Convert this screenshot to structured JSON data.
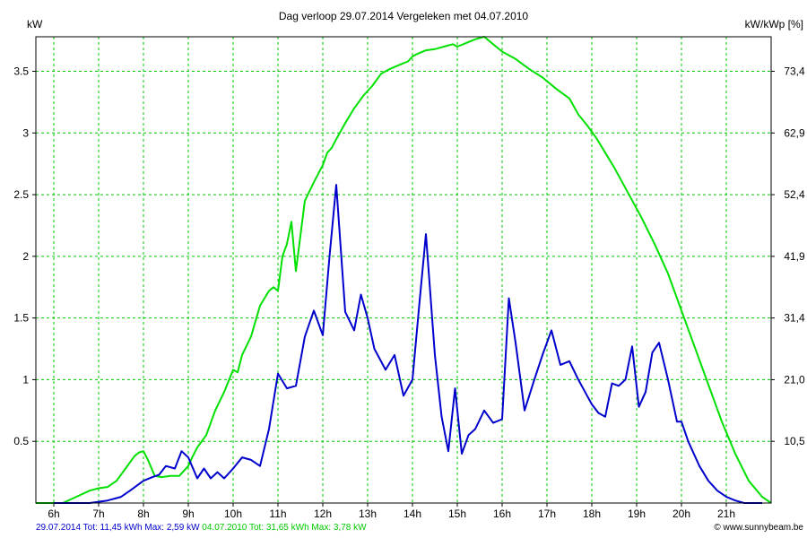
{
  "chart_data": {
    "type": "line",
    "title": "Dag  verloop 29.07.2014    Vergeleken met 04.07.2010",
    "ylabel_left": "kW",
    "ylabel_right": "kW/kWp [%]",
    "x_tick_labels": [
      "6h",
      "7h",
      "8h",
      "9h",
      "10h",
      "11h",
      "12h",
      "13h",
      "14h",
      "15h",
      "16h",
      "17h",
      "18h",
      "19h",
      "20h",
      "21h"
    ],
    "x_ticks": [
      6,
      7,
      8,
      9,
      10,
      11,
      12,
      13,
      14,
      15,
      16,
      17,
      18,
      19,
      20,
      21
    ],
    "xlim": [
      5.6,
      22
    ],
    "y_ticks": [
      0.5,
      1,
      1.5,
      2,
      2.5,
      3,
      3.5
    ],
    "y_tick_labels": [
      "0.5",
      "1",
      "1.5",
      "2",
      "2.5",
      "3",
      "3.5"
    ],
    "ylim": [
      0,
      3.78
    ],
    "y2_tick_labels": [
      "10,5",
      "21,0",
      "31,4",
      "41,9",
      "52,4",
      "62,9",
      "73,4"
    ],
    "grid": true,
    "series": [
      {
        "name": "04.07.2010",
        "color": "#00e000",
        "x": [
          5.6,
          6.2,
          6.5,
          6.8,
          7.0,
          7.2,
          7.4,
          7.6,
          7.8,
          7.9,
          8.0,
          8.1,
          8.25,
          8.4,
          8.6,
          8.8,
          9.0,
          9.1,
          9.2,
          9.4,
          9.6,
          9.8,
          10.0,
          10.1,
          10.2,
          10.4,
          10.6,
          10.8,
          10.9,
          11.0,
          11.1,
          11.2,
          11.3,
          11.4,
          11.6,
          11.8,
          12.0,
          12.1,
          12.2,
          12.3,
          12.5,
          12.7,
          12.9,
          13.1,
          13.3,
          13.5,
          13.7,
          13.9,
          14.0,
          14.1,
          14.3,
          14.5,
          14.7,
          14.9,
          15.0,
          15.2,
          15.4,
          15.6,
          15.8,
          16.0,
          16.3,
          16.6,
          16.9,
          17.2,
          17.5,
          17.7,
          17.9,
          18.1,
          18.3,
          18.5,
          18.8,
          19.1,
          19.4,
          19.7,
          20.0,
          20.3,
          20.6,
          20.9,
          21.2,
          21.5,
          21.8,
          22.0
        ],
        "values": [
          0.0,
          0.0,
          0.05,
          0.1,
          0.12,
          0.13,
          0.18,
          0.28,
          0.38,
          0.41,
          0.42,
          0.35,
          0.22,
          0.21,
          0.22,
          0.22,
          0.3,
          0.38,
          0.45,
          0.55,
          0.75,
          0.9,
          1.08,
          1.06,
          1.2,
          1.35,
          1.6,
          1.72,
          1.75,
          1.72,
          2.0,
          2.1,
          2.28,
          1.88,
          2.45,
          2.6,
          2.74,
          2.84,
          2.88,
          2.95,
          3.08,
          3.2,
          3.3,
          3.38,
          3.48,
          3.52,
          3.55,
          3.58,
          3.62,
          3.64,
          3.67,
          3.68,
          3.7,
          3.72,
          3.7,
          3.73,
          3.76,
          3.78,
          3.72,
          3.66,
          3.6,
          3.52,
          3.45,
          3.36,
          3.28,
          3.15,
          3.06,
          2.96,
          2.84,
          2.72,
          2.52,
          2.32,
          2.1,
          1.86,
          1.56,
          1.26,
          0.96,
          0.66,
          0.4,
          0.18,
          0.05,
          0.0
        ]
      },
      {
        "name": "29.07.2014",
        "color": "#0000cc",
        "x": [
          6.0,
          6.8,
          7.2,
          7.5,
          7.7,
          8.0,
          8.2,
          8.35,
          8.5,
          8.7,
          8.85,
          9.0,
          9.2,
          9.35,
          9.5,
          9.65,
          9.8,
          10.0,
          10.2,
          10.4,
          10.6,
          10.8,
          11.0,
          11.2,
          11.4,
          11.6,
          11.8,
          12.0,
          12.15,
          12.3,
          12.5,
          12.7,
          12.85,
          13.0,
          13.15,
          13.4,
          13.6,
          13.8,
          14.0,
          14.15,
          14.3,
          14.5,
          14.65,
          14.8,
          14.95,
          15.1,
          15.25,
          15.4,
          15.6,
          15.8,
          16.0,
          16.15,
          16.3,
          16.5,
          16.7,
          16.9,
          17.1,
          17.3,
          17.5,
          17.7,
          17.85,
          18.0,
          18.15,
          18.3,
          18.45,
          18.6,
          18.75,
          18.9,
          19.05,
          19.2,
          19.35,
          19.5,
          19.7,
          19.9,
          20.0,
          20.15,
          20.4,
          20.6,
          20.8,
          21.0,
          21.2,
          21.4,
          21.6,
          21.8
        ],
        "values": [
          0.0,
          0.0,
          0.02,
          0.05,
          0.1,
          0.18,
          0.21,
          0.23,
          0.3,
          0.28,
          0.42,
          0.37,
          0.2,
          0.28,
          0.2,
          0.25,
          0.2,
          0.28,
          0.37,
          0.35,
          0.3,
          0.6,
          1.05,
          0.93,
          0.95,
          1.35,
          1.56,
          1.36,
          2.0,
          2.58,
          1.55,
          1.4,
          1.69,
          1.5,
          1.25,
          1.08,
          1.2,
          0.87,
          1.0,
          1.6,
          2.18,
          1.2,
          0.7,
          0.42,
          0.93,
          0.4,
          0.55,
          0.6,
          0.75,
          0.65,
          0.68,
          1.66,
          1.3,
          0.75,
          0.98,
          1.2,
          1.4,
          1.12,
          1.15,
          1.0,
          0.9,
          0.8,
          0.73,
          0.7,
          0.97,
          0.95,
          1.0,
          1.27,
          0.78,
          0.9,
          1.22,
          1.3,
          1.0,
          0.66,
          0.66,
          0.5,
          0.3,
          0.18,
          0.1,
          0.05,
          0.02,
          0.0,
          0.0,
          0.0
        ]
      }
    ]
  },
  "footer": {
    "left_blue": "29.07.2014 Tot: 11,45 kWh Max: 2,59 kW",
    "left_green": "04.07.2010 Tot: 31,65 kWh Max: 3,78 kW",
    "right": "© www.sunnybeam.be"
  }
}
